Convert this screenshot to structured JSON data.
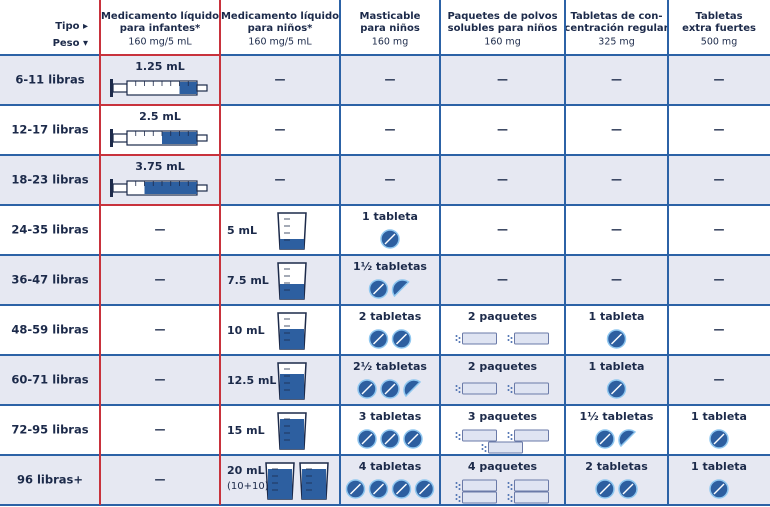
{
  "header": {
    "type_label": "Tipo ▸",
    "weight_label": "Peso ▾",
    "columns": [
      {
        "lines": [
          "Medicamento líquido",
          "para infantes*"
        ],
        "strength": "160 mg/5 mL"
      },
      {
        "lines": [
          "Medicamento líquido",
          "para niños*"
        ],
        "strength": "160 mg/5 mL"
      },
      {
        "lines": [
          "Masticable",
          "para niños"
        ],
        "strength": "160 mg"
      },
      {
        "lines": [
          "Paquetes de polvos",
          "solubles para niños"
        ],
        "strength": "160 mg"
      },
      {
        "lines": [
          "Tabletas de con-",
          "centración regular"
        ],
        "strength": "325 mg"
      },
      {
        "lines": [
          "Tabletas",
          "extra fuertes"
        ],
        "strength": "500 mg"
      }
    ]
  },
  "rows": [
    {
      "weight": "6-11 libras",
      "cells": [
        "1.25 mL",
        "—",
        "—",
        "—",
        "—",
        "—"
      ]
    },
    {
      "weight": "12-17 libras",
      "cells": [
        "2.5 mL",
        "—",
        "—",
        "—",
        "—",
        "—"
      ]
    },
    {
      "weight": "18-23 libras",
      "cells": [
        "3.75 mL",
        "—",
        "—",
        "—",
        "—",
        "—"
      ]
    },
    {
      "weight": "24-35 libras",
      "cells": [
        "—",
        "5 mL",
        "1 tableta",
        "—",
        "—",
        "—"
      ]
    },
    {
      "weight": "36-47 libras",
      "cells": [
        "—",
        "7.5 mL",
        "1½ tabletas",
        "—",
        "—",
        "—"
      ]
    },
    {
      "weight": "48-59 libras",
      "cells": [
        "—",
        "10 mL",
        "2 tabletas",
        "2 paquetes",
        "1 tableta",
        "—"
      ]
    },
    {
      "weight": "60-71 libras",
      "cells": [
        "—",
        "12.5 mL",
        "2½ tabletas",
        "2 paquetes",
        "1 tableta",
        "—"
      ]
    },
    {
      "weight": "72-95 libras",
      "cells": [
        "—",
        "15 mL",
        "3 tabletas",
        "3 paquetes",
        "1½ tabletas",
        "1 tableta"
      ]
    },
    {
      "weight": "96 libras+",
      "cells": [
        "—",
        "20 mL",
        "4 tabletas",
        "4 paquetes",
        "2 tabletas",
        "1 tableta"
      ],
      "liquid_note": "(10+10)"
    }
  ]
}
